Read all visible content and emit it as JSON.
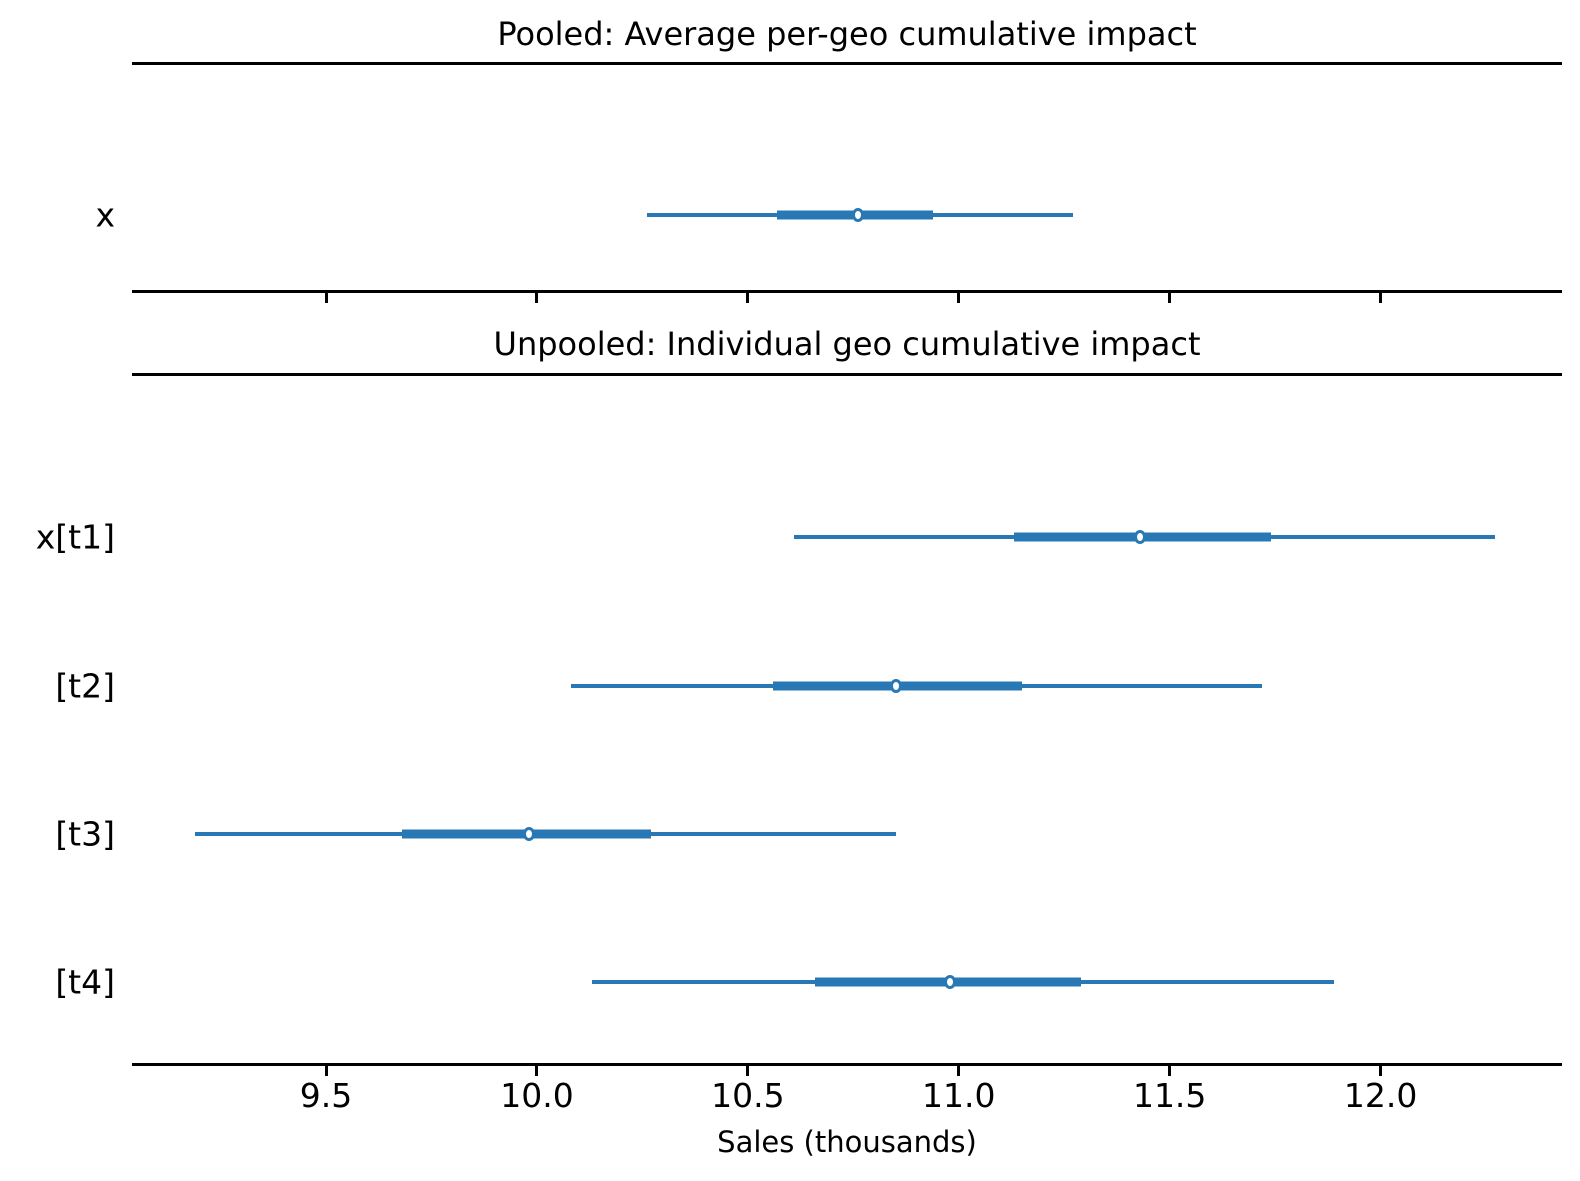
{
  "chart_data": {
    "type": "forest",
    "title": "",
    "xlabel": "Sales (thousands)",
    "ylabel": "",
    "xlim": [
      9.04,
      12.43
    ],
    "grid": false,
    "accent_color": "#2878b5",
    "xticks": [
      {
        "value": 9.5,
        "label": "9.5"
      },
      {
        "value": 10.0,
        "label": "10.0"
      },
      {
        "value": 10.5,
        "label": "10.5"
      },
      {
        "value": 11.0,
        "label": "11.0"
      },
      {
        "value": 11.5,
        "label": "11.5"
      },
      {
        "value": 12.0,
        "label": "12.0"
      }
    ],
    "panels": [
      {
        "title": "Pooled: Average per-geo cumulative impact",
        "rows": [
          {
            "label": "x",
            "outer_interval": [
              10.26,
              11.27
            ],
            "inner_interval": [
              10.57,
              10.94
            ],
            "median": 10.76
          }
        ]
      },
      {
        "title": "Unpooled: Individual geo cumulative impact",
        "rows": [
          {
            "label": "x[t1]",
            "outer_interval": [
              10.61,
              12.27
            ],
            "inner_interval": [
              11.13,
              11.74
            ],
            "median": 11.43
          },
          {
            "label": "[t2]",
            "outer_interval": [
              10.08,
              11.72
            ],
            "inner_interval": [
              10.56,
              11.15
            ],
            "median": 10.85
          },
          {
            "label": "[t3]",
            "outer_interval": [
              9.19,
              10.85
            ],
            "inner_interval": [
              9.68,
              10.27
            ],
            "median": 9.98
          },
          {
            "label": "[t4]",
            "outer_interval": [
              10.13,
              11.89
            ],
            "inner_interval": [
              10.66,
              11.29
            ],
            "median": 10.98
          }
        ]
      }
    ]
  }
}
